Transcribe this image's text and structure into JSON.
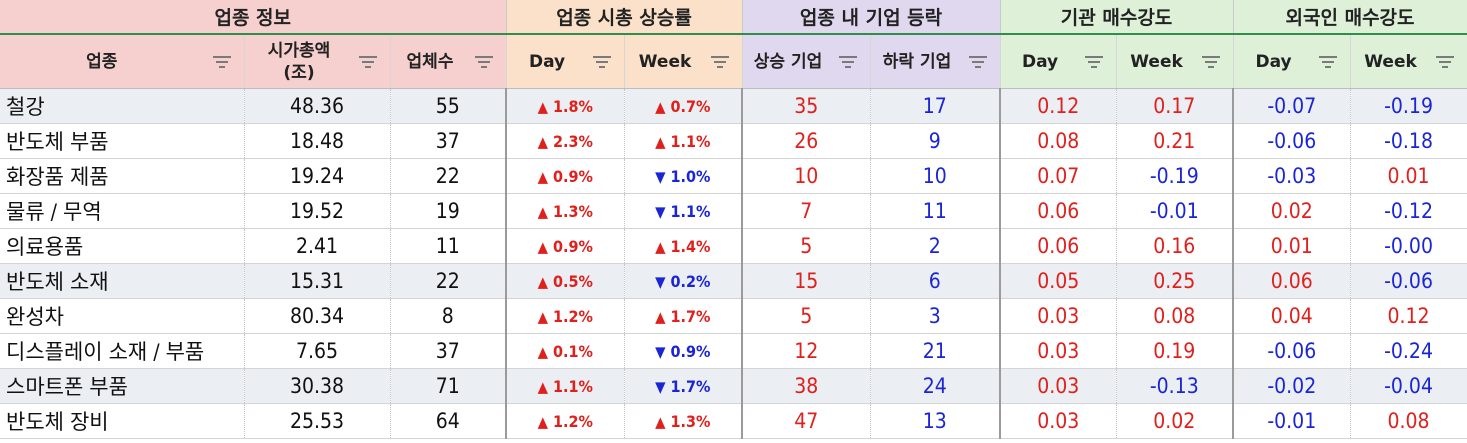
{
  "colors": {
    "up": "#e0201c",
    "down": "#1a25d6"
  },
  "groups": [
    {
      "label": "업종 정보"
    },
    {
      "label": "업종 시총 상승률"
    },
    {
      "label": "업종 내 기업 등락"
    },
    {
      "label": "기관 매수강도"
    },
    {
      "label": "외국인 매수강도"
    }
  ],
  "columns": [
    {
      "label": "업종",
      "icon": "filter-icon"
    },
    {
      "label": "시가총액\n(조)",
      "icon": "filter-icon"
    },
    {
      "label": "업체수",
      "icon": "filter-icon"
    },
    {
      "label": "Day",
      "icon": "filter-icon"
    },
    {
      "label": "Week",
      "icon": "filter-icon"
    },
    {
      "label": "상승 기업",
      "icon": "filter-icon"
    },
    {
      "label": "하락 기업",
      "icon": "filter-icon"
    },
    {
      "label": "Day",
      "icon": "filter-icon"
    },
    {
      "label": "Week",
      "icon": "filter-icon"
    },
    {
      "label": "Day",
      "icon": "filter-icon"
    },
    {
      "label": "Week",
      "icon": "filter-icon"
    }
  ],
  "rows": [
    {
      "name": "철강",
      "cap": "48.36",
      "count": "55",
      "day_dir": "up",
      "day": "1.8%",
      "week_dir": "up",
      "week": "0.7%",
      "rise": "35",
      "fall": "17",
      "inst_day": "0.12",
      "inst_week": "0.17",
      "for_day": "-0.07",
      "for_week": "-0.19",
      "shaded": true
    },
    {
      "name": "반도체 부품",
      "cap": "18.48",
      "count": "37",
      "day_dir": "up",
      "day": "2.3%",
      "week_dir": "up",
      "week": "1.1%",
      "rise": "26",
      "fall": "9",
      "inst_day": "0.08",
      "inst_week": "0.21",
      "for_day": "-0.06",
      "for_week": "-0.18",
      "shaded": false
    },
    {
      "name": "화장품 제품",
      "cap": "19.24",
      "count": "22",
      "day_dir": "up",
      "day": "0.9%",
      "week_dir": "down",
      "week": "1.0%",
      "rise": "10",
      "fall": "10",
      "inst_day": "0.07",
      "inst_week": "-0.19",
      "for_day": "-0.03",
      "for_week": "0.01",
      "shaded": false
    },
    {
      "name": "물류 / 무역",
      "cap": "19.52",
      "count": "19",
      "day_dir": "up",
      "day": "1.3%",
      "week_dir": "down",
      "week": "1.1%",
      "rise": "7",
      "fall": "11",
      "inst_day": "0.06",
      "inst_week": "-0.01",
      "for_day": "0.02",
      "for_week": "-0.12",
      "shaded": false
    },
    {
      "name": "의료용품",
      "cap": "2.41",
      "count": "11",
      "day_dir": "up",
      "day": "0.9%",
      "week_dir": "up",
      "week": "1.4%",
      "rise": "5",
      "fall": "2",
      "inst_day": "0.06",
      "inst_week": "0.16",
      "for_day": "0.01",
      "for_week": "-0.00",
      "shaded": false
    },
    {
      "name": "반도체 소재",
      "cap": "15.31",
      "count": "22",
      "day_dir": "up",
      "day": "0.5%",
      "week_dir": "down",
      "week": "0.2%",
      "rise": "15",
      "fall": "6",
      "inst_day": "0.05",
      "inst_week": "0.25",
      "for_day": "0.06",
      "for_week": "-0.06",
      "shaded": true
    },
    {
      "name": "완성차",
      "cap": "80.34",
      "count": "8",
      "day_dir": "up",
      "day": "1.2%",
      "week_dir": "up",
      "week": "1.7%",
      "rise": "5",
      "fall": "3",
      "inst_day": "0.03",
      "inst_week": "0.08",
      "for_day": "0.04",
      "for_week": "0.12",
      "shaded": false
    },
    {
      "name": "디스플레이 소재 / 부품",
      "cap": "7.65",
      "count": "37",
      "day_dir": "up",
      "day": "0.1%",
      "week_dir": "down",
      "week": "0.9%",
      "rise": "12",
      "fall": "21",
      "inst_day": "0.03",
      "inst_week": "0.19",
      "for_day": "-0.06",
      "for_week": "-0.24",
      "shaded": false
    },
    {
      "name": "스마트폰 부품",
      "cap": "30.38",
      "count": "71",
      "day_dir": "up",
      "day": "1.1%",
      "week_dir": "down",
      "week": "1.7%",
      "rise": "38",
      "fall": "24",
      "inst_day": "0.03",
      "inst_week": "-0.13",
      "for_day": "-0.02",
      "for_week": "-0.04",
      "shaded": true
    },
    {
      "name": "반도체 장비",
      "cap": "25.53",
      "count": "64",
      "day_dir": "up",
      "day": "1.2%",
      "week_dir": "up",
      "week": "1.3%",
      "rise": "47",
      "fall": "13",
      "inst_day": "0.03",
      "inst_week": "0.02",
      "for_day": "-0.01",
      "for_week": "0.08",
      "shaded": false
    }
  ]
}
